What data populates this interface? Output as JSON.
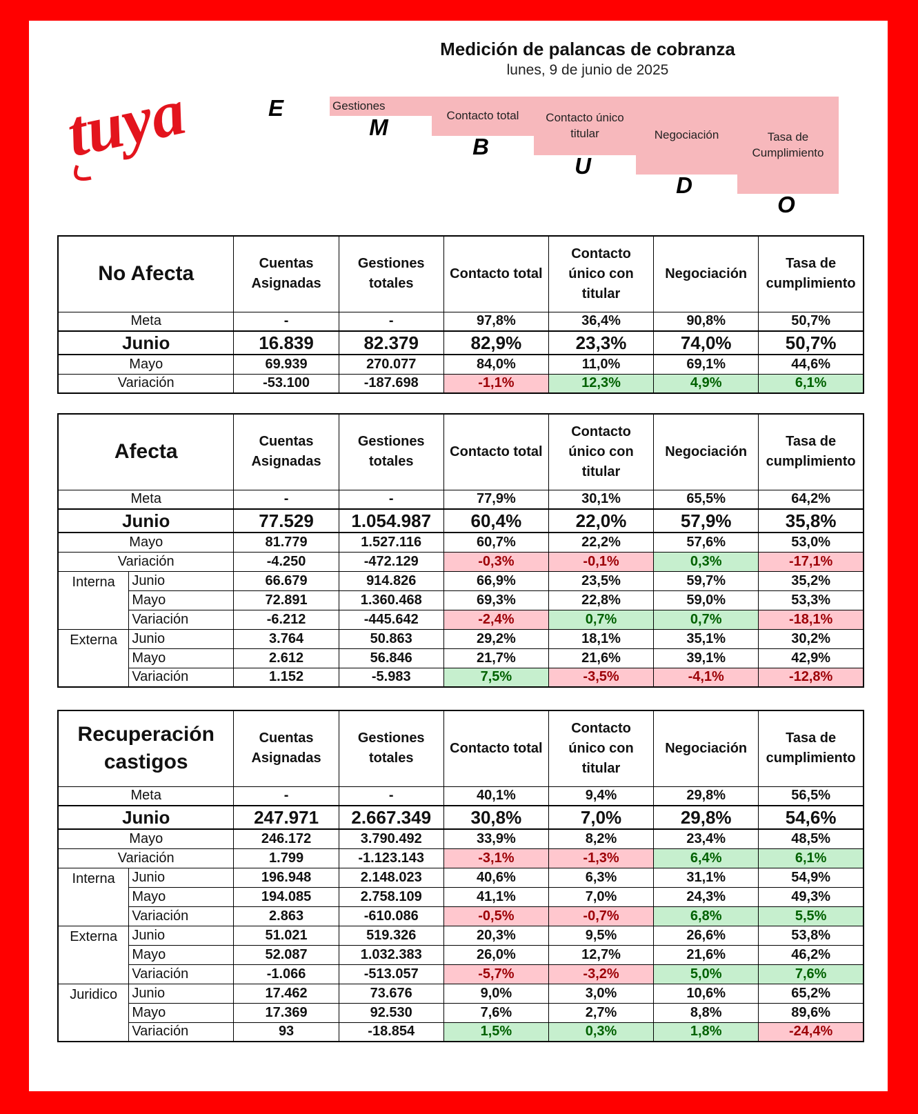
{
  "header": {
    "title": "Medición de palancas de cobranza",
    "date": "lunes, 9 de junio de 2025",
    "logo_text": "tuya",
    "steps": [
      {
        "label": "Gestiones",
        "letter": "M"
      },
      {
        "label": "Contacto total",
        "letter": "B"
      },
      {
        "label": "Contacto único titular",
        "letter": "U"
      },
      {
        "label": "Negociación",
        "letter": "D"
      },
      {
        "label": "Tasa de Cumplimiento",
        "letter": "O"
      }
    ],
    "first_letter": "E"
  },
  "columns": [
    "Cuentas Asignadas",
    "Gestiones totales",
    "Contacto total",
    "Contacto único con titular",
    "Negociación",
    "Tasa de cumplimiento"
  ],
  "colors": {
    "frame": "#ff0000",
    "negative_bg": "#ffc7ce",
    "negative_text": "#9c0006",
    "positive_bg": "#c6efce",
    "positive_text": "#006100",
    "stair_bg": "#f7b8bc"
  },
  "sections": [
    {
      "name": "No Afecta",
      "rows": [
        {
          "label": "Meta",
          "values": [
            "-",
            "-",
            "97,8%",
            "36,4%",
            "90,8%",
            "50,7%"
          ]
        },
        {
          "label": "Junio",
          "values": [
            "16.839",
            "82.379",
            "82,9%",
            "23,3%",
            "74,0%",
            "50,7%"
          ]
        },
        {
          "label": "Mayo",
          "values": [
            "69.939",
            "270.077",
            "84,0%",
            "11,0%",
            "69,1%",
            "44,6%"
          ]
        },
        {
          "label": "Variación",
          "values": [
            "-53.100",
            "-187.698",
            "-1,1%",
            "12,3%",
            "4,9%",
            "6,1%"
          ]
        }
      ],
      "groups": []
    },
    {
      "name": "Afecta",
      "rows": [
        {
          "label": "Meta",
          "values": [
            "-",
            "-",
            "77,9%",
            "30,1%",
            "65,5%",
            "64,2%"
          ]
        },
        {
          "label": "Junio",
          "values": [
            "77.529",
            "1.054.987",
            "60,4%",
            "22,0%",
            "57,9%",
            "35,8%"
          ]
        },
        {
          "label": "Mayo",
          "values": [
            "81.779",
            "1.527.116",
            "60,7%",
            "22,2%",
            "57,6%",
            "53,0%"
          ]
        },
        {
          "label": "Variación",
          "values": [
            "-4.250",
            "-472.129",
            "-0,3%",
            "-0,1%",
            "0,3%",
            "-17,1%"
          ]
        }
      ],
      "groups": [
        {
          "name": "Interna",
          "rows": [
            {
              "label": "Junio",
              "values": [
                "66.679",
                "914.826",
                "66,9%",
                "23,5%",
                "59,7%",
                "35,2%"
              ]
            },
            {
              "label": "Mayo",
              "values": [
                "72.891",
                "1.360.468",
                "69,3%",
                "22,8%",
                "59,0%",
                "53,3%"
              ]
            },
            {
              "label": "Variación",
              "values": [
                "-6.212",
                "-445.642",
                "-2,4%",
                "0,7%",
                "0,7%",
                "-18,1%"
              ]
            }
          ]
        },
        {
          "name": "Externa",
          "rows": [
            {
              "label": "Junio",
              "values": [
                "3.764",
                "50.863",
                "29,2%",
                "18,1%",
                "35,1%",
                "30,2%"
              ]
            },
            {
              "label": "Mayo",
              "values": [
                "2.612",
                "56.846",
                "21,7%",
                "21,6%",
                "39,1%",
                "42,9%"
              ]
            },
            {
              "label": "Variación",
              "values": [
                "1.152",
                "-5.983",
                "7,5%",
                "-3,5%",
                "-4,1%",
                "-12,8%"
              ]
            }
          ]
        }
      ]
    },
    {
      "name": "Recuperación castigos",
      "rows": [
        {
          "label": "Meta",
          "values": [
            "-",
            "-",
            "40,1%",
            "9,4%",
            "29,8%",
            "56,5%"
          ]
        },
        {
          "label": "Junio",
          "values": [
            "247.971",
            "2.667.349",
            "30,8%",
            "7,0%",
            "29,8%",
            "54,6%"
          ]
        },
        {
          "label": "Mayo",
          "values": [
            "246.172",
            "3.790.492",
            "33,9%",
            "8,2%",
            "23,4%",
            "48,5%"
          ]
        },
        {
          "label": "Variación",
          "values": [
            "1.799",
            "-1.123.143",
            "-3,1%",
            "-1,3%",
            "6,4%",
            "6,1%"
          ]
        }
      ],
      "groups": [
        {
          "name": "Interna",
          "rows": [
            {
              "label": "Junio",
              "values": [
                "196.948",
                "2.148.023",
                "40,6%",
                "6,3%",
                "31,1%",
                "54,9%"
              ]
            },
            {
              "label": "Mayo",
              "values": [
                "194.085",
                "2.758.109",
                "41,1%",
                "7,0%",
                "24,3%",
                "49,3%"
              ]
            },
            {
              "label": "Variación",
              "values": [
                "2.863",
                "-610.086",
                "-0,5%",
                "-0,7%",
                "6,8%",
                "5,5%"
              ]
            }
          ]
        },
        {
          "name": "Externa",
          "rows": [
            {
              "label": "Junio",
              "values": [
                "51.021",
                "519.326",
                "20,3%",
                "9,5%",
                "26,6%",
                "53,8%"
              ]
            },
            {
              "label": "Mayo",
              "values": [
                "52.087",
                "1.032.383",
                "26,0%",
                "12,7%",
                "21,6%",
                "46,2%"
              ]
            },
            {
              "label": "Variación",
              "values": [
                "-1.066",
                "-513.057",
                "-5,7%",
                "-3,2%",
                "5,0%",
                "7,6%"
              ]
            }
          ]
        },
        {
          "name": "Juridico",
          "rows": [
            {
              "label": "Junio",
              "values": [
                "17.462",
                "73.676",
                "9,0%",
                "3,0%",
                "10,6%",
                "65,2%"
              ]
            },
            {
              "label": "Mayo",
              "values": [
                "17.369",
                "92.530",
                "7,6%",
                "2,7%",
                "8,8%",
                "89,6%"
              ]
            },
            {
              "label": "Variación",
              "values": [
                "93",
                "-18.854",
                "1,5%",
                "0,3%",
                "1,8%",
                "-24,4%"
              ]
            }
          ]
        }
      ]
    }
  ]
}
